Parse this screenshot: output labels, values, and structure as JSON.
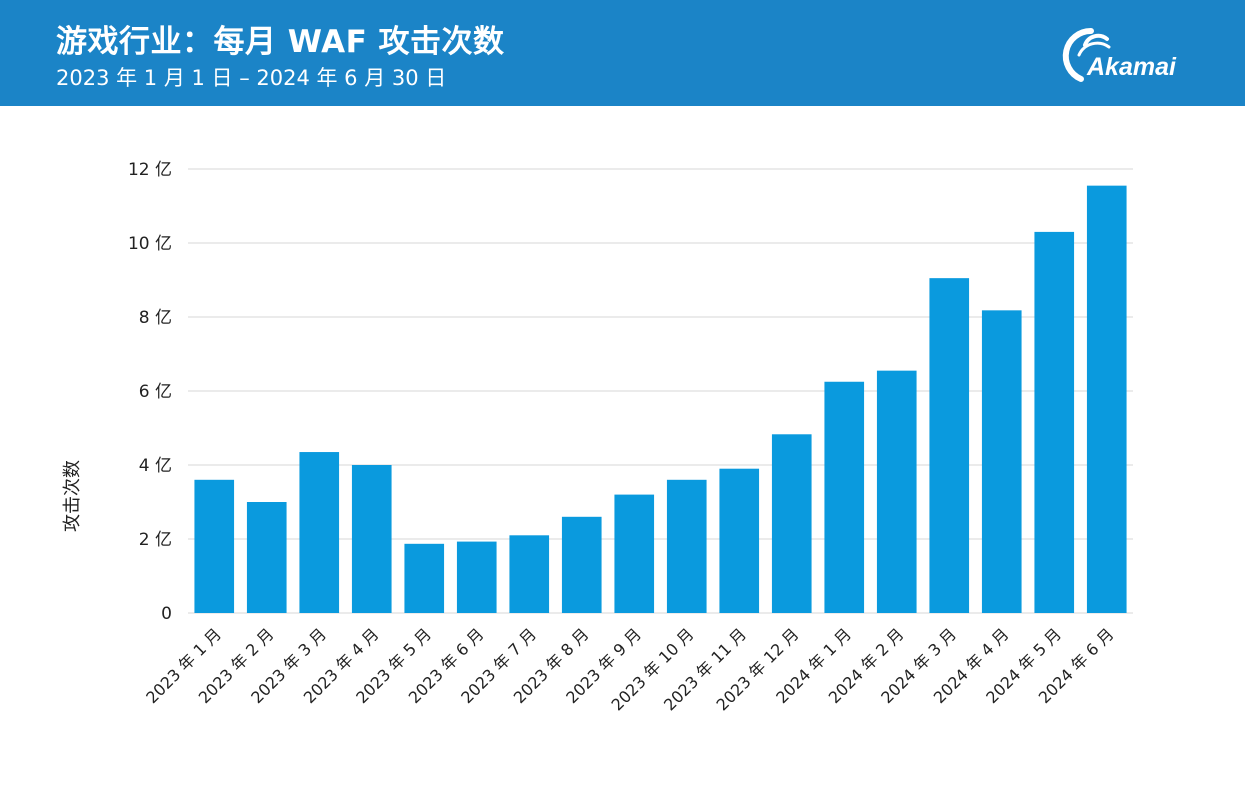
{
  "header": {
    "title": "游戏行业：每月 WAF 攻击次数",
    "subtitle": "2023 年 1 月 1 日 – 2024 年 6 月 30 日",
    "logo_text": "Akamai"
  },
  "colors": {
    "header_bg": "#1b84c7",
    "bar": "#0a9ade",
    "grid": "#d7d7d7"
  },
  "chart_data": {
    "type": "bar",
    "categories": [
      "2023 年 1 月",
      "2023 年 2 月",
      "2023 年 3 月",
      "2023 年 4 月",
      "2023 年 5 月",
      "2023 年 6 月",
      "2023 年 7 月",
      "2023 年 8 月",
      "2023 年 9 月",
      "2023 年 10 月",
      "2023 年 11 月",
      "2023 年 12 月",
      "2024 年 1 月",
      "2024 年 2 月",
      "2024 年 3 月",
      "2024 年 4 月",
      "2024 年 5 月",
      "2024 年 6 月"
    ],
    "values": [
      3.6,
      3.0,
      4.35,
      4.0,
      1.87,
      1.93,
      2.1,
      2.6,
      3.2,
      3.6,
      3.9,
      4.83,
      6.25,
      6.55,
      9.05,
      8.18,
      10.3,
      11.55
    ],
    "value_unit": "亿",
    "ylabel": "攻击次数",
    "xlabel": "",
    "title": "",
    "ylim": [
      0,
      12
    ],
    "yticks": [
      0,
      2,
      4,
      6,
      8,
      10,
      12
    ],
    "ytick_labels": [
      "0",
      "2 亿",
      "4 亿",
      "6 亿",
      "8 亿",
      "10 亿",
      "12 亿"
    ],
    "grid": true,
    "legend": "none"
  }
}
